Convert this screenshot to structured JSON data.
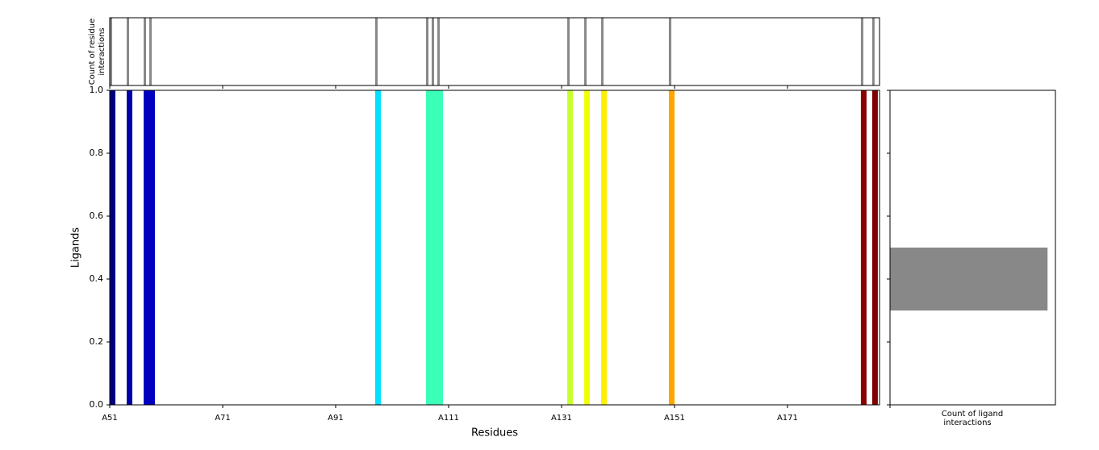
{
  "chart_data": [
    {
      "type": "residue-bar",
      "y_label": [
        "Count of residue",
        "interactions"
      ],
      "x": [
        51,
        54,
        57,
        58,
        98,
        107,
        108,
        109,
        132,
        135,
        138,
        150,
        184,
        186
      ],
      "values": [
        1,
        1,
        1,
        1,
        1,
        1,
        1,
        1,
        1,
        1,
        1,
        1,
        1,
        1
      ],
      "color": "#888888",
      "xlim": [
        51,
        187.3
      ],
      "ylim": [
        0,
        1
      ]
    },
    {
      "type": "bar",
      "x_label": "Residues",
      "y_label": "Ligands",
      "x": [
        51,
        54,
        57,
        58,
        98,
        107,
        108,
        109,
        132,
        135,
        138,
        150,
        184,
        186
      ],
      "values": [
        1,
        1,
        1,
        1,
        1,
        1,
        1,
        1,
        1,
        1,
        1,
        1,
        1,
        1
      ],
      "colors": [
        "#00007f",
        "#0000a8",
        "#0000bf",
        "#0000bf",
        "#00e0ff",
        "#3affb9",
        "#3affb9",
        "#3affb9",
        "#c8ff2f",
        "#f0ff08",
        "#ffef00",
        "#ffa500",
        "#8b0000",
        "#7f0000"
      ],
      "xlim": [
        51,
        187.3
      ],
      "ylim": [
        0,
        1
      ],
      "xticks": [
        {
          "value": 51,
          "label": "A51"
        },
        {
          "value": 71,
          "label": "A71"
        },
        {
          "value": 91,
          "label": "A91"
        },
        {
          "value": 111,
          "label": "A111"
        },
        {
          "value": 131,
          "label": "A131"
        },
        {
          "value": 151,
          "label": "A151"
        },
        {
          "value": 171,
          "label": "A171"
        }
      ],
      "yticks": [
        {
          "value": 0,
          "label": "0.0"
        },
        0.2,
        0.4,
        0.6,
        0.8,
        {
          "value": 1,
          "label": "1.0"
        }
      ]
    },
    {
      "type": "barh",
      "x_label": [
        "Count of ligand",
        "interactions"
      ],
      "y": [
        0.4
      ],
      "height": 0.2,
      "values": [
        14
      ],
      "color": "#888888",
      "xlim": [
        0,
        14.7
      ],
      "ylim": [
        0,
        1
      ]
    }
  ]
}
